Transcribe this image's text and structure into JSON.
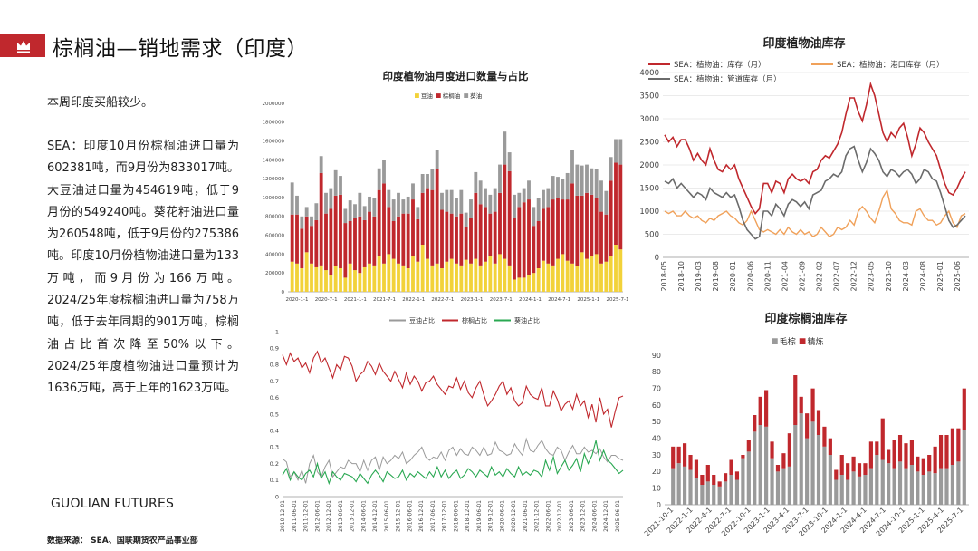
{
  "header": {
    "title": "棕榈油—销地需求（印度）"
  },
  "summary": "本周印度买船较少。",
  "body_text": "SEA：印度10月份棕榈油进口量为602381吨，而9月份为833017吨。大豆油进口量为454619吨，低于9月份的549240吨。葵花籽油进口量为260548吨，低于9月份的275386吨。印度10月份植物油进口量为133万吨，而9月份为166万吨。2024/25年度棕榈油进口量为758万吨，低于去年同期的901万吨，棕榈油占比首次降至50%以下。2024/25年度植物油进口量预计为1636万吨，高于上年的1623万吨。",
  "brand": "GUOLIAN FUTURES",
  "source": "数据来源：    SEA、国联期货农产品事业部",
  "colors": {
    "brand_red": "#c0282d",
    "soy": "#f2d23a",
    "palm": "#c0282d",
    "sun": "#9a9a9a",
    "sun_line": "#2aa852",
    "port": "#f0a15a",
    "pipe": "#6b6b6b",
    "crude": "#9a9a9a",
    "refined": "#c0282d"
  },
  "chart_data": [
    {
      "id": "imports",
      "type": "bar",
      "stacked": true,
      "title": "印度植物油月度进口数量与占比",
      "legend": [
        "豆油",
        "棕榈油",
        "葵油"
      ],
      "legend_position": "top",
      "x_ticks": [
        "2020-1-1",
        "2020-7-1",
        "2021-1-1",
        "2021-7-1",
        "2022-1-1",
        "2022-7-1",
        "2023-1-1",
        "2023-7-1",
        "2024-1-1",
        "2024-7-1",
        "2025-1-1",
        "2025-7-1"
      ],
      "y_ticks": [
        "0",
        "200000",
        "400000",
        "600000",
        "800000",
        "1000000",
        "1200000",
        "1400000",
        "1600000",
        "1800000",
        "2000000"
      ],
      "ylim": [
        0,
        2000000
      ],
      "months": 69,
      "series": [
        {
          "name": "豆油",
          "values": [
            320000,
            300000,
            250000,
            420000,
            300000,
            260000,
            280000,
            230000,
            180000,
            270000,
            250000,
            150000,
            300000,
            230000,
            200000,
            260000,
            300000,
            280000,
            380000,
            300000,
            400000,
            350000,
            300000,
            280000,
            250000,
            380000,
            320000,
            500000,
            350000,
            280000,
            300000,
            250000,
            320000,
            350000,
            300000,
            280000,
            340000,
            300000,
            350000,
            280000,
            320000,
            380000,
            300000,
            400000,
            350000,
            280000,
            130000,
            150000,
            150000,
            180000,
            200000,
            250000,
            330000,
            300000,
            280000,
            350000,
            400000,
            330000,
            300000,
            270000,
            420000,
            350000,
            380000,
            400000,
            300000,
            320000,
            380000,
            500000,
            450000
          ]
        },
        {
          "name": "棕榈油",
          "values": [
            500000,
            520000,
            420000,
            380000,
            400000,
            500000,
            980000,
            600000,
            700000,
            750000,
            780000,
            580000,
            450000,
            550000,
            600000,
            500000,
            550000,
            520000,
            700000,
            850000,
            500000,
            400000,
            500000,
            550000,
            580000,
            600000,
            450000,
            550000,
            750000,
            800000,
            1000000,
            620000,
            530000,
            480000,
            500000,
            550000,
            350000,
            480000,
            700000,
            650000,
            580000,
            450000,
            550000,
            650000,
            1000000,
            1000000,
            650000,
            750000,
            800000,
            800000,
            500000,
            500000,
            550000,
            600000,
            700000,
            650000,
            580000,
            650000,
            850000,
            750000,
            600000,
            700000,
            650000,
            600000,
            550000,
            500000,
            800000,
            870000,
            900000
          ]
        },
        {
          "name": "葵油",
          "values": [
            340000,
            200000,
            130000,
            100000,
            100000,
            180000,
            180000,
            220000,
            220000,
            270000,
            200000,
            150000,
            220000,
            150000,
            250000,
            150000,
            160000,
            200000,
            230000,
            250000,
            180000,
            230000,
            250000,
            150000,
            180000,
            170000,
            130000,
            200000,
            150000,
            220000,
            200000,
            180000,
            230000,
            250000,
            200000,
            250000,
            150000,
            200000,
            220000,
            250000,
            200000,
            200000,
            250000,
            300000,
            350000,
            200000,
            250000,
            150000,
            150000,
            200000,
            200000,
            250000,
            200000,
            200000,
            250000,
            220000,
            220000,
            280000,
            350000,
            330000,
            320000,
            300000,
            280000,
            300000,
            330000,
            250000,
            250000,
            250000,
            270000
          ]
        }
      ]
    },
    {
      "id": "shares",
      "type": "line",
      "legend": [
        "豆油占比",
        "棕榈占比",
        "葵油占比"
      ],
      "legend_position": "top",
      "y_ticks": [
        "0",
        "0.1",
        "0.2",
        "0.3",
        "0.4",
        "0.5",
        "0.6",
        "0.7",
        "0.8",
        "0.9",
        "1"
      ],
      "ylim": [
        0,
        1
      ],
      "x_ticks": [
        "2010-12-01",
        "2011-06-01",
        "2011-12-01",
        "2012-06-01",
        "2012-12-01",
        "2013-06-01",
        "2013-12-01",
        "2014-06-01",
        "2014-12-01",
        "2015-06-01",
        "2015-12-01",
        "2016-06-01",
        "2016-12-01",
        "2017-06-01",
        "2017-12-01",
        "2018-06-01",
        "2018-12-01",
        "2019-06-01",
        "2019-12-01",
        "2020-06-01",
        "2020-12-01",
        "2021-06-01",
        "2021-12-01",
        "2022-06-01",
        "2022-12-01",
        "2023-06-01",
        "2023-12-01",
        "2024-06-01",
        "2024-12-01",
        "2025-06-01"
      ],
      "series": [
        {
          "name": "豆油占比",
          "values": [
            0.23,
            0.21,
            0.12,
            0.15,
            0.1,
            0.16,
            0.08,
            0.2,
            0.25,
            0.15,
            0.12,
            0.18,
            0.22,
            0.12,
            0.15,
            0.18,
            0.17,
            0.22,
            0.2,
            0.2,
            0.15,
            0.22,
            0.16,
            0.22,
            0.24,
            0.16,
            0.24,
            0.2,
            0.22,
            0.25,
            0.23,
            0.27,
            0.2,
            0.22,
            0.25,
            0.27,
            0.3,
            0.24,
            0.22,
            0.24,
            0.23,
            0.27,
            0.22,
            0.28,
            0.3,
            0.25,
            0.29,
            0.26,
            0.25,
            0.3,
            0.28,
            0.25,
            0.3,
            0.25,
            0.26,
            0.33,
            0.28,
            0.27,
            0.25,
            0.26,
            0.32,
            0.28,
            0.25,
            0.35,
            0.28,
            0.27,
            0.31,
            0.34,
            0.29,
            0.26,
            0.25,
            0.3,
            0.28,
            0.22,
            0.27,
            0.31,
            0.26,
            0.26,
            0.3,
            0.27,
            0.28,
            0.26,
            0.29,
            0.24,
            0.21,
            0.25,
            0.25,
            0.23,
            0.22
          ]
        },
        {
          "name": "棕榈占比",
          "values": [
            0.86,
            0.8,
            0.87,
            0.82,
            0.84,
            0.78,
            0.81,
            0.75,
            0.84,
            0.88,
            0.81,
            0.84,
            0.78,
            0.72,
            0.8,
            0.77,
            0.85,
            0.84,
            0.79,
            0.7,
            0.74,
            0.76,
            0.82,
            0.79,
            0.74,
            0.81,
            0.76,
            0.73,
            0.7,
            0.76,
            0.71,
            0.66,
            0.75,
            0.68,
            0.73,
            0.7,
            0.64,
            0.69,
            0.7,
            0.73,
            0.68,
            0.65,
            0.62,
            0.67,
            0.66,
            0.72,
            0.65,
            0.7,
            0.63,
            0.6,
            0.66,
            0.7,
            0.62,
            0.55,
            0.58,
            0.62,
            0.67,
            0.7,
            0.62,
            0.66,
            0.58,
            0.55,
            0.57,
            0.67,
            0.62,
            0.6,
            0.59,
            0.66,
            0.55,
            0.55,
            0.64,
            0.59,
            0.52,
            0.56,
            0.58,
            0.53,
            0.62,
            0.55,
            0.58,
            0.48,
            0.56,
            0.45,
            0.6,
            0.5,
            0.53,
            0.42,
            0.52,
            0.6,
            0.61
          ]
        },
        {
          "name": "葵油占比",
          "values": [
            0.13,
            0.17,
            0.1,
            0.15,
            0.12,
            0.1,
            0.14,
            0.16,
            0.12,
            0.2,
            0.11,
            0.15,
            0.08,
            0.15,
            0.12,
            0.1,
            0.14,
            0.13,
            0.12,
            0.09,
            0.14,
            0.11,
            0.08,
            0.13,
            0.16,
            0.13,
            0.09,
            0.15,
            0.13,
            0.11,
            0.12,
            0.16,
            0.1,
            0.14,
            0.12,
            0.15,
            0.13,
            0.11,
            0.15,
            0.12,
            0.18,
            0.12,
            0.16,
            0.11,
            0.14,
            0.16,
            0.11,
            0.13,
            0.17,
            0.15,
            0.12,
            0.16,
            0.14,
            0.12,
            0.18,
            0.13,
            0.15,
            0.12,
            0.17,
            0.14,
            0.12,
            0.18,
            0.13,
            0.15,
            0.13,
            0.16,
            0.15,
            0.12,
            0.22,
            0.16,
            0.24,
            0.14,
            0.18,
            0.22,
            0.16,
            0.19,
            0.23,
            0.15,
            0.26,
            0.2,
            0.25,
            0.34,
            0.22,
            0.28,
            0.22,
            0.2,
            0.17,
            0.14,
            0.16
          ]
        }
      ]
    },
    {
      "id": "veg_stock",
      "type": "line",
      "title": "印度植物油库存",
      "legend": [
        "SEA：植物油：库存（月）",
        "SEA：植物油：港口库存（月）",
        "SEA：植物油：管道库存（月）"
      ],
      "legend_position": "top",
      "y_ticks": [
        "0",
        "500",
        "1000",
        "1500",
        "2000",
        "2500",
        "3000",
        "3500",
        "4000"
      ],
      "ylim": [
        0,
        4000
      ],
      "x_ticks": [
        "2018-05",
        "2018-10",
        "2019-03",
        "2019-08",
        "2020-01",
        "2020-06",
        "2020-11",
        "2021-04",
        "2021-09",
        "2022-02",
        "2022-07",
        "2022-12",
        "2023-05",
        "2023-10",
        "2024-03",
        "2024-08",
        "2025-01",
        "2025-06"
      ],
      "series": [
        {
          "name": "SEA：植物油：库存（月）",
          "values": [
            2650,
            2500,
            2600,
            2400,
            2550,
            2550,
            2350,
            2100,
            2250,
            2100,
            2000,
            2350,
            2100,
            1900,
            1850,
            2000,
            1900,
            2000,
            1700,
            1500,
            1300,
            1100,
            950,
            1050,
            1600,
            1600,
            1400,
            1650,
            1600,
            1400,
            1700,
            1800,
            1700,
            1650,
            1700,
            1600,
            1850,
            1900,
            2100,
            2200,
            2150,
            2300,
            2450,
            2700,
            3100,
            3450,
            3450,
            3150,
            2950,
            3300,
            3750,
            3500,
            3100,
            2700,
            2500,
            2700,
            2600,
            2800,
            2900,
            2600,
            2200,
            2450,
            2800,
            2700,
            2500,
            2350,
            2200,
            1900,
            1600,
            1400,
            1350,
            1500,
            1700,
            1850
          ]
        },
        {
          "name": "SEA：植物油：港口库存（月）",
          "values": [
            1000,
            950,
            1000,
            900,
            900,
            1000,
            900,
            850,
            900,
            800,
            750,
            850,
            800,
            900,
            950,
            1000,
            900,
            850,
            750,
            700,
            800,
            1000,
            800,
            600,
            550,
            600,
            550,
            500,
            600,
            500,
            650,
            550,
            500,
            600,
            500,
            550,
            450,
            500,
            650,
            550,
            450,
            500,
            650,
            600,
            650,
            800,
            700,
            1000,
            1100,
            1000,
            850,
            750,
            1000,
            1300,
            1450,
            1050,
            950,
            800,
            750,
            750,
            700,
            1000,
            1050,
            900,
            800,
            800,
            700,
            750,
            900,
            1000,
            750,
            650,
            900,
            950
          ]
        },
        {
          "name": "SEA：植物油：管道库存（月）",
          "values": [
            1650,
            1600,
            1700,
            1500,
            1600,
            1500,
            1400,
            1300,
            1400,
            1350,
            1250,
            1500,
            1400,
            1350,
            1300,
            1400,
            1300,
            1350,
            1100,
            800,
            600,
            500,
            400,
            450,
            1000,
            1000,
            900,
            1150,
            1050,
            900,
            1150,
            1250,
            1200,
            1100,
            1200,
            1050,
            1350,
            1400,
            1450,
            1650,
            1700,
            1800,
            1750,
            1850,
            2200,
            2350,
            2400,
            2100,
            1850,
            2050,
            2350,
            2250,
            2100,
            1850,
            1750,
            1900,
            1850,
            1750,
            1850,
            1900,
            1800,
            1600,
            1700,
            1900,
            1850,
            1700,
            1650,
            1400,
            1100,
            800,
            650,
            700,
            800,
            900
          ]
        }
      ]
    },
    {
      "id": "palm_stock",
      "type": "bar",
      "stacked": true,
      "title": "印度棕榈油库存",
      "legend": [
        "毛棕",
        "精炼"
      ],
      "legend_position": "top",
      "y_ticks": [
        "0",
        "10",
        "20",
        "30",
        "40",
        "50",
        "60",
        "70",
        "80",
        "90"
      ],
      "ylim": [
        0,
        90
      ],
      "x_ticks": [
        "2021-10-1",
        "2022-1-1",
        "2022-4-1",
        "2022-7-1",
        "2022-10-1",
        "2023-1-1",
        "2023-4-1",
        "2023-7-1",
        "2023-10-1",
        "2024-1-1",
        "2024-4-1",
        "2024-7-1",
        "2024-10-1",
        "2025-1-1",
        "2025-4-1",
        "2025-7-1"
      ],
      "series": [
        {
          "name": "毛棕",
          "values": [
            22,
            25,
            23,
            21,
            16,
            12,
            14,
            12,
            11,
            14,
            18,
            15,
            28,
            32,
            44,
            48,
            47,
            28,
            20,
            22,
            23,
            48,
            55,
            40,
            50,
            42,
            35,
            30,
            15,
            18,
            15,
            20,
            17,
            18,
            22,
            30,
            27,
            25,
            22,
            26,
            22,
            24,
            20,
            18,
            20,
            19,
            22,
            22,
            24,
            26,
            45
          ]
        },
        {
          "name": "精炼",
          "values": [
            13,
            10,
            14,
            9,
            11,
            6,
            10,
            6,
            3,
            5,
            9,
            5,
            2,
            7,
            10,
            17,
            22,
            10,
            4,
            9,
            20,
            30,
            10,
            15,
            20,
            15,
            12,
            10,
            6,
            12,
            10,
            9,
            8,
            7,
            16,
            8,
            25,
            8,
            17,
            16,
            15,
            15,
            9,
            10,
            10,
            16,
            20,
            20,
            22,
            20,
            25
          ]
        }
      ]
    }
  ]
}
